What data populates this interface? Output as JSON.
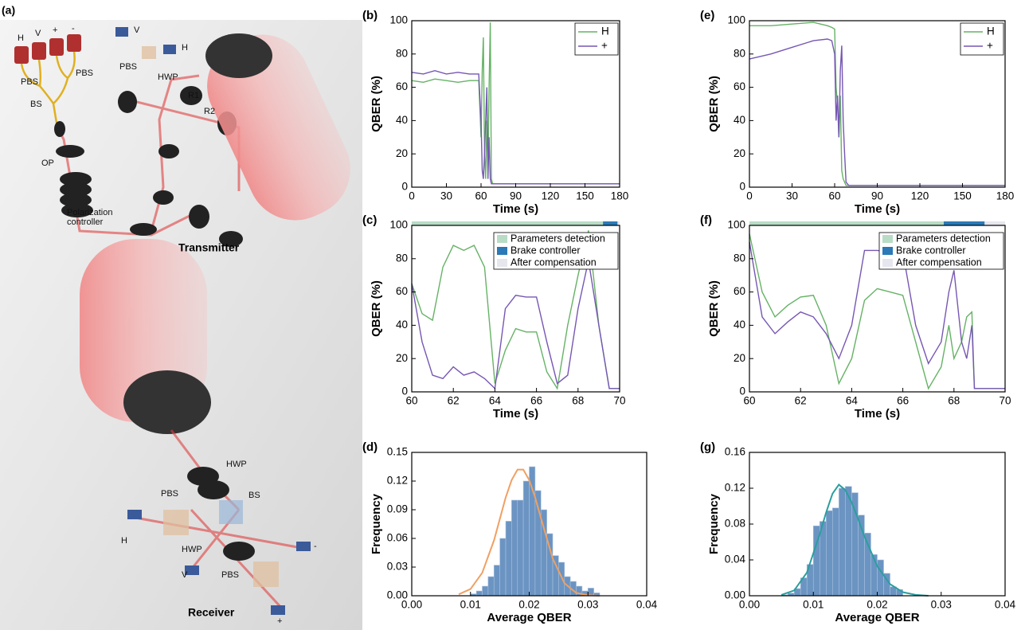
{
  "diagram": {
    "panel_label": "(a)",
    "labels": [
      "H",
      "V",
      "+",
      "-",
      "PBS",
      "PBS",
      "BS",
      "OP",
      "Polarization",
      "controller",
      "V",
      "H",
      "PBS",
      "HWP",
      "R1",
      "R2",
      "Transmitter",
      "HWP",
      "BS",
      "PBS",
      "H",
      "HWP",
      "V",
      "PBS",
      "-",
      "+",
      "Receiver"
    ]
  },
  "chart_data": [
    {
      "type": "line",
      "panel_label": "(b)",
      "x_label": "Time (s)",
      "y_label": "QBER (%)",
      "x": [
        0,
        10,
        20,
        30,
        40,
        50,
        58,
        60,
        61,
        62,
        63,
        64,
        65,
        66,
        67,
        68,
        69,
        70,
        80,
        90,
        100,
        110,
        120,
        130,
        140,
        150,
        160,
        170,
        180
      ],
      "series": [
        {
          "name": "H",
          "color": "#66b266",
          "values": [
            64,
            63,
            65,
            64,
            63,
            64,
            64,
            30,
            70,
            90,
            20,
            5,
            40,
            10,
            60,
            99,
            5,
            2,
            2,
            2,
            2,
            2,
            2,
            2,
            2,
            2,
            2,
            2,
            2
          ]
        },
        {
          "name": "+",
          "color": "#7657b3",
          "values": [
            69,
            68,
            70,
            68,
            69,
            68,
            68,
            40,
            10,
            5,
            20,
            40,
            60,
            5,
            30,
            5,
            2,
            2,
            2,
            2,
            2,
            2,
            2,
            2,
            2,
            2,
            2,
            2,
            2
          ]
        }
      ],
      "xlim": [
        0,
        180
      ],
      "xticks": [
        0,
        30,
        60,
        90,
        120,
        150,
        180
      ],
      "ylim": [
        0,
        100
      ],
      "yticks": [
        0,
        20,
        40,
        60,
        80,
        100
      ],
      "legend": "upper right"
    },
    {
      "type": "line",
      "panel_label": "(c)",
      "x_label": "Time (s)",
      "y_label": "QBER (%)",
      "x": [
        60,
        60.5,
        61,
        61.5,
        62,
        62.5,
        63,
        63.5,
        64,
        64.5,
        65,
        65.5,
        66,
        66.5,
        67,
        67.5,
        68,
        68.5,
        69,
        69.5,
        70
      ],
      "series": [
        {
          "color": "#66b266",
          "values": [
            65,
            47,
            43,
            75,
            88,
            85,
            88,
            75,
            5,
            25,
            38,
            36,
            36,
            12,
            2,
            40,
            70,
            97,
            40,
            2,
            2
          ]
        },
        {
          "color": "#7657b3",
          "values": [
            65,
            30,
            10,
            8,
            15,
            10,
            12,
            8,
            2,
            50,
            58,
            57,
            57,
            30,
            5,
            10,
            50,
            79,
            40,
            2,
            2
          ]
        }
      ],
      "regions": [
        {
          "name": "Parameters detection",
          "color": "#b8dcc5",
          "start": 60,
          "end": 69.2
        },
        {
          "name": "Brake controller",
          "color": "#2b79b6",
          "start": 69.2,
          "end": 69.9
        },
        {
          "name": "After compensation",
          "color": "#e6e6ee",
          "start": 69.9,
          "end": 70
        }
      ],
      "xlim": [
        60,
        70
      ],
      "xticks": [
        60,
        62,
        64,
        66,
        68,
        70
      ],
      "ylim": [
        0,
        100
      ],
      "yticks": [
        0,
        20,
        40,
        60,
        80,
        100
      ],
      "legend": "upper right"
    },
    {
      "type": "histogram",
      "panel_label": "(d)",
      "x_label": "Average QBER",
      "y_label": "Frequency",
      "color": "#6b94c2",
      "bins": [
        0.01,
        0.011,
        0.012,
        0.013,
        0.014,
        0.015,
        0.016,
        0.017,
        0.018,
        0.019,
        0.02,
        0.021,
        0.022,
        0.023,
        0.024,
        0.025,
        0.026,
        0.027,
        0.028,
        0.029,
        0.03,
        0.031,
        0.032
      ],
      "values": [
        0.002,
        0.005,
        0.01,
        0.02,
        0.032,
        0.06,
        0.078,
        0.1,
        0.1,
        0.12,
        0.135,
        0.11,
        0.09,
        0.065,
        0.042,
        0.035,
        0.02,
        0.015,
        0.01,
        0.005,
        0.008,
        0.003
      ],
      "fit": {
        "color": "#f0a063",
        "x": [
          0.008,
          0.01,
          0.012,
          0.014,
          0.016,
          0.017,
          0.018,
          0.019,
          0.02,
          0.021,
          0.022,
          0.024,
          0.026,
          0.028,
          0.03,
          0.032
        ],
        "values": [
          0.0015,
          0.007,
          0.024,
          0.058,
          0.103,
          0.121,
          0.132,
          0.132,
          0.121,
          0.103,
          0.081,
          0.039,
          0.013,
          0.003,
          0.0006,
          0
        ]
      },
      "xlim": [
        0,
        0.04
      ],
      "xticks": [
        {
          "value": 0,
          "label": "0.00"
        },
        0.01,
        0.02,
        0.03,
        0.04
      ],
      "ylim": [
        0,
        0.15
      ],
      "yticks": [
        {
          "value": 0,
          "label": "0.00"
        },
        0.03,
        0.06,
        0.09,
        0.12,
        0.15
      ]
    },
    {
      "type": "line",
      "panel_label": "(e)",
      "x_label": "Time (s)",
      "y_label": "QBER (%)",
      "x": [
        0,
        15,
        30,
        45,
        55,
        58,
        60,
        61,
        62,
        63,
        64,
        65,
        66,
        67,
        68,
        70,
        80,
        90,
        100,
        110,
        120,
        130,
        140,
        150,
        160,
        170,
        180
      ],
      "series": [
        {
          "name": "H",
          "color": "#66b266",
          "values": [
            97,
            97,
            98,
            99,
            97,
            96,
            95,
            60,
            50,
            30,
            55,
            10,
            5,
            3,
            1,
            1,
            1,
            1,
            1,
            1,
            1,
            1,
            1,
            1,
            1,
            1,
            1
          ]
        },
        {
          "name": "+",
          "color": "#7657b3",
          "values": [
            77,
            80,
            84,
            88,
            89,
            88,
            80,
            40,
            55,
            30,
            70,
            85,
            40,
            20,
            3,
            1,
            1,
            1,
            1,
            1,
            1,
            1,
            1,
            1,
            1,
            1,
            1
          ]
        }
      ],
      "xlim": [
        0,
        180
      ],
      "xticks": [
        0,
        30,
        60,
        90,
        120,
        150,
        180
      ],
      "ylim": [
        0,
        100
      ],
      "yticks": [
        0,
        20,
        40,
        60,
        80,
        100
      ],
      "legend": "upper right"
    },
    {
      "type": "line",
      "panel_label": "(f)",
      "x_label": "Time (s)",
      "y_label": "QBER (%)",
      "x": [
        60,
        60.5,
        61,
        61.5,
        62,
        62.5,
        63,
        63.5,
        64,
        64.5,
        65,
        65.5,
        66,
        66.5,
        67,
        67.5,
        67.8,
        68,
        68.3,
        68.5,
        68.7,
        68.8,
        69,
        69.5,
        70
      ],
      "series": [
        {
          "color": "#66b266",
          "values": [
            95,
            60,
            45,
            52,
            57,
            58,
            40,
            5,
            20,
            55,
            62,
            60,
            58,
            30,
            2,
            15,
            40,
            20,
            30,
            45,
            48,
            2,
            2,
            2,
            2
          ]
        },
        {
          "color": "#7657b3",
          "values": [
            90,
            45,
            35,
            42,
            48,
            45,
            35,
            20,
            40,
            85,
            85,
            84,
            84,
            40,
            17,
            30,
            60,
            73,
            30,
            20,
            40,
            2,
            2,
            2,
            2
          ]
        }
      ],
      "regions": [
        {
          "name": "Parameters detection",
          "color": "#b8dcc5",
          "start": 60,
          "end": 67.6
        },
        {
          "name": "Brake controller",
          "color": "#2b79b6",
          "start": 67.6,
          "end": 69.2
        },
        {
          "name": "After compensation",
          "color": "#e6e6ee",
          "start": 69.2,
          "end": 70
        }
      ],
      "xlim": [
        60,
        70
      ],
      "xticks": [
        60,
        62,
        64,
        66,
        68,
        70
      ],
      "ylim": [
        0,
        100
      ],
      "yticks": [
        0,
        20,
        40,
        60,
        80,
        100
      ],
      "legend": "upper right"
    },
    {
      "type": "histogram",
      "panel_label": "(g)",
      "x_label": "Average QBER",
      "y_label": "Frequency",
      "color": "#6b94c2",
      "bins": [
        0.005,
        0.006,
        0.007,
        0.008,
        0.009,
        0.01,
        0.011,
        0.012,
        0.013,
        0.014,
        0.015,
        0.016,
        0.017,
        0.018,
        0.019,
        0.02,
        0.021,
        0.022,
        0.023,
        0.024
      ],
      "values": [
        0.001,
        0.003,
        0.008,
        0.02,
        0.035,
        0.078,
        0.083,
        0.095,
        0.098,
        0.12,
        0.122,
        0.115,
        0.09,
        0.07,
        0.046,
        0.04,
        0.025,
        0.01,
        0.007
      ],
      "fit": {
        "color": "#2b9e9e",
        "x": [
          0.005,
          0.007,
          0.009,
          0.011,
          0.012,
          0.013,
          0.014,
          0.015,
          0.016,
          0.017,
          0.018,
          0.02,
          0.022,
          0.024,
          0.026,
          0.028
        ],
        "values": [
          0.001,
          0.006,
          0.026,
          0.069,
          0.093,
          0.114,
          0.124,
          0.118,
          0.104,
          0.086,
          0.066,
          0.033,
          0.013,
          0.004,
          0.001,
          0
        ]
      },
      "xlim": [
        0,
        0.04
      ],
      "xticks": [
        {
          "value": 0,
          "label": "0.00"
        },
        0.01,
        0.02,
        0.03,
        0.04
      ],
      "ylim": [
        0,
        0.16
      ],
      "yticks": [
        {
          "value": 0,
          "label": "0.00"
        },
        0.04,
        0.08,
        0.12,
        0.16
      ]
    }
  ]
}
